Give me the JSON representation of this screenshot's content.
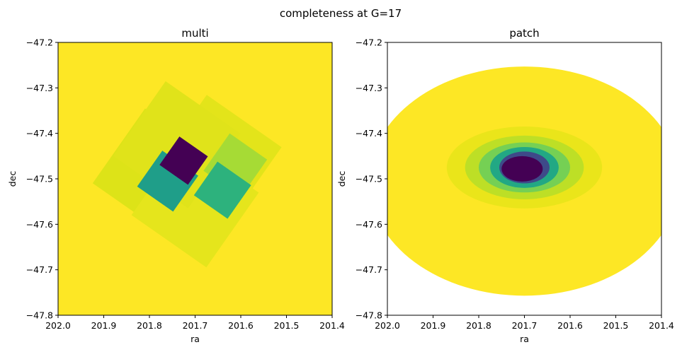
{
  "figure": {
    "suptitle": "completeness at G=17"
  },
  "colors": {
    "viridis_yellow": "#fde725",
    "viridis_purple": "#440154",
    "teal": "#1f9e89",
    "green_teal": "#2db27d",
    "yellow_green_1": "#dde318",
    "yellow_green_2": "#e3e41a",
    "yellow_green_3": "#a6db35",
    "blue_purple": "#3e4a89"
  },
  "chart_data": [
    {
      "type": "heatmap",
      "title": "multi",
      "xlabel": "ra",
      "ylabel": "dec",
      "xlim": [
        202.0,
        201.4
      ],
      "ylim": [
        -47.8,
        -47.2
      ],
      "x_ticks": [
        "202.0",
        "201.9",
        "201.8",
        "201.7",
        "201.6",
        "201.5",
        "201.4"
      ],
      "y_ticks": [
        "−47.2",
        "−47.3",
        "−47.4",
        "−47.5",
        "−47.6",
        "−47.7",
        "−47.8"
      ],
      "colormap": "viridis",
      "background_value": 1.0,
      "regions": [
        {
          "shape": "square",
          "center": [
            201.785,
            -47.485
          ],
          "half_size": 0.1,
          "rotation_deg": 35,
          "value": 0.92,
          "color": "#dde318"
        },
        {
          "shape": "square",
          "center": [
            201.65,
            -47.455
          ],
          "half_size": 0.1,
          "rotation_deg": 35,
          "value": 0.96,
          "color": "#e3e41a"
        },
        {
          "shape": "square",
          "center": [
            201.7,
            -47.555
          ],
          "half_size": 0.1,
          "rotation_deg": 35,
          "value": 0.97,
          "color": "#e5e51c"
        },
        {
          "shape": "square",
          "center": [
            201.74,
            -47.425
          ],
          "half_size": 0.1,
          "rotation_deg": 35,
          "value": 0.94,
          "color": "#e0e31a"
        },
        {
          "shape": "square",
          "center": [
            201.612,
            -47.47
          ],
          "half_size": 0.05,
          "rotation_deg": 35,
          "value": 0.75,
          "color": "#a6db35"
        },
        {
          "shape": "square",
          "center": [
            201.76,
            -47.505
          ],
          "half_size": 0.048,
          "rotation_deg": 35,
          "value": 0.45,
          "color": "#1f9e89"
        },
        {
          "shape": "square",
          "center": [
            201.64,
            -47.525
          ],
          "half_size": 0.045,
          "rotation_deg": 35,
          "value": 0.55,
          "color": "#2db27d"
        },
        {
          "shape": "square",
          "center": [
            201.725,
            -47.46
          ],
          "half_size": 0.038,
          "rotation_deg": 35,
          "value": 0.0,
          "color": "#440154"
        }
      ]
    },
    {
      "type": "heatmap",
      "title": "patch",
      "xlabel": "ra",
      "ylabel": "dec",
      "xlim": [
        202.0,
        201.4
      ],
      "ylim": [
        -47.8,
        -47.2
      ],
      "x_ticks": [
        "202.0",
        "201.9",
        "201.8",
        "201.7",
        "201.6",
        "201.5",
        "201.4"
      ],
      "y_ticks": [
        "−47.2",
        "−47.3",
        "−47.4",
        "−47.5",
        "−47.6",
        "−47.7",
        "−47.8"
      ],
      "colormap": "viridis",
      "footprint": {
        "shape": "ellipse",
        "center": [
          201.7,
          -47.505
        ],
        "ra_radius": 0.34,
        "dec_radius": 0.252,
        "value": 1.0,
        "color": "#fde725"
      },
      "regions": [
        {
          "shape": "ellipse",
          "center": [
            201.7,
            -47.475
          ],
          "ra_radius": 0.17,
          "dec_radius": 0.09,
          "value": 0.96,
          "color": "#eae51a"
        },
        {
          "shape": "ellipse",
          "center": [
            201.7,
            -47.475
          ],
          "ra_radius": 0.13,
          "dec_radius": 0.07,
          "value": 0.88,
          "color": "#bddf26"
        },
        {
          "shape": "ellipse",
          "center": [
            201.7,
            -47.475
          ],
          "ra_radius": 0.1,
          "dec_radius": 0.055,
          "value": 0.72,
          "color": "#75d054"
        },
        {
          "shape": "ellipse",
          "center": [
            201.7,
            -47.475
          ],
          "ra_radius": 0.075,
          "dec_radius": 0.045,
          "value": 0.5,
          "color": "#22a884"
        },
        {
          "shape": "ellipse",
          "center": [
            201.7,
            -47.475
          ],
          "ra_radius": 0.055,
          "dec_radius": 0.035,
          "value": 0.3,
          "color": "#3e4a89"
        },
        {
          "shape": "ellipse",
          "center": [
            201.705,
            -47.478
          ],
          "ra_radius": 0.045,
          "dec_radius": 0.028,
          "value": 0.0,
          "color": "#440154"
        }
      ]
    }
  ]
}
